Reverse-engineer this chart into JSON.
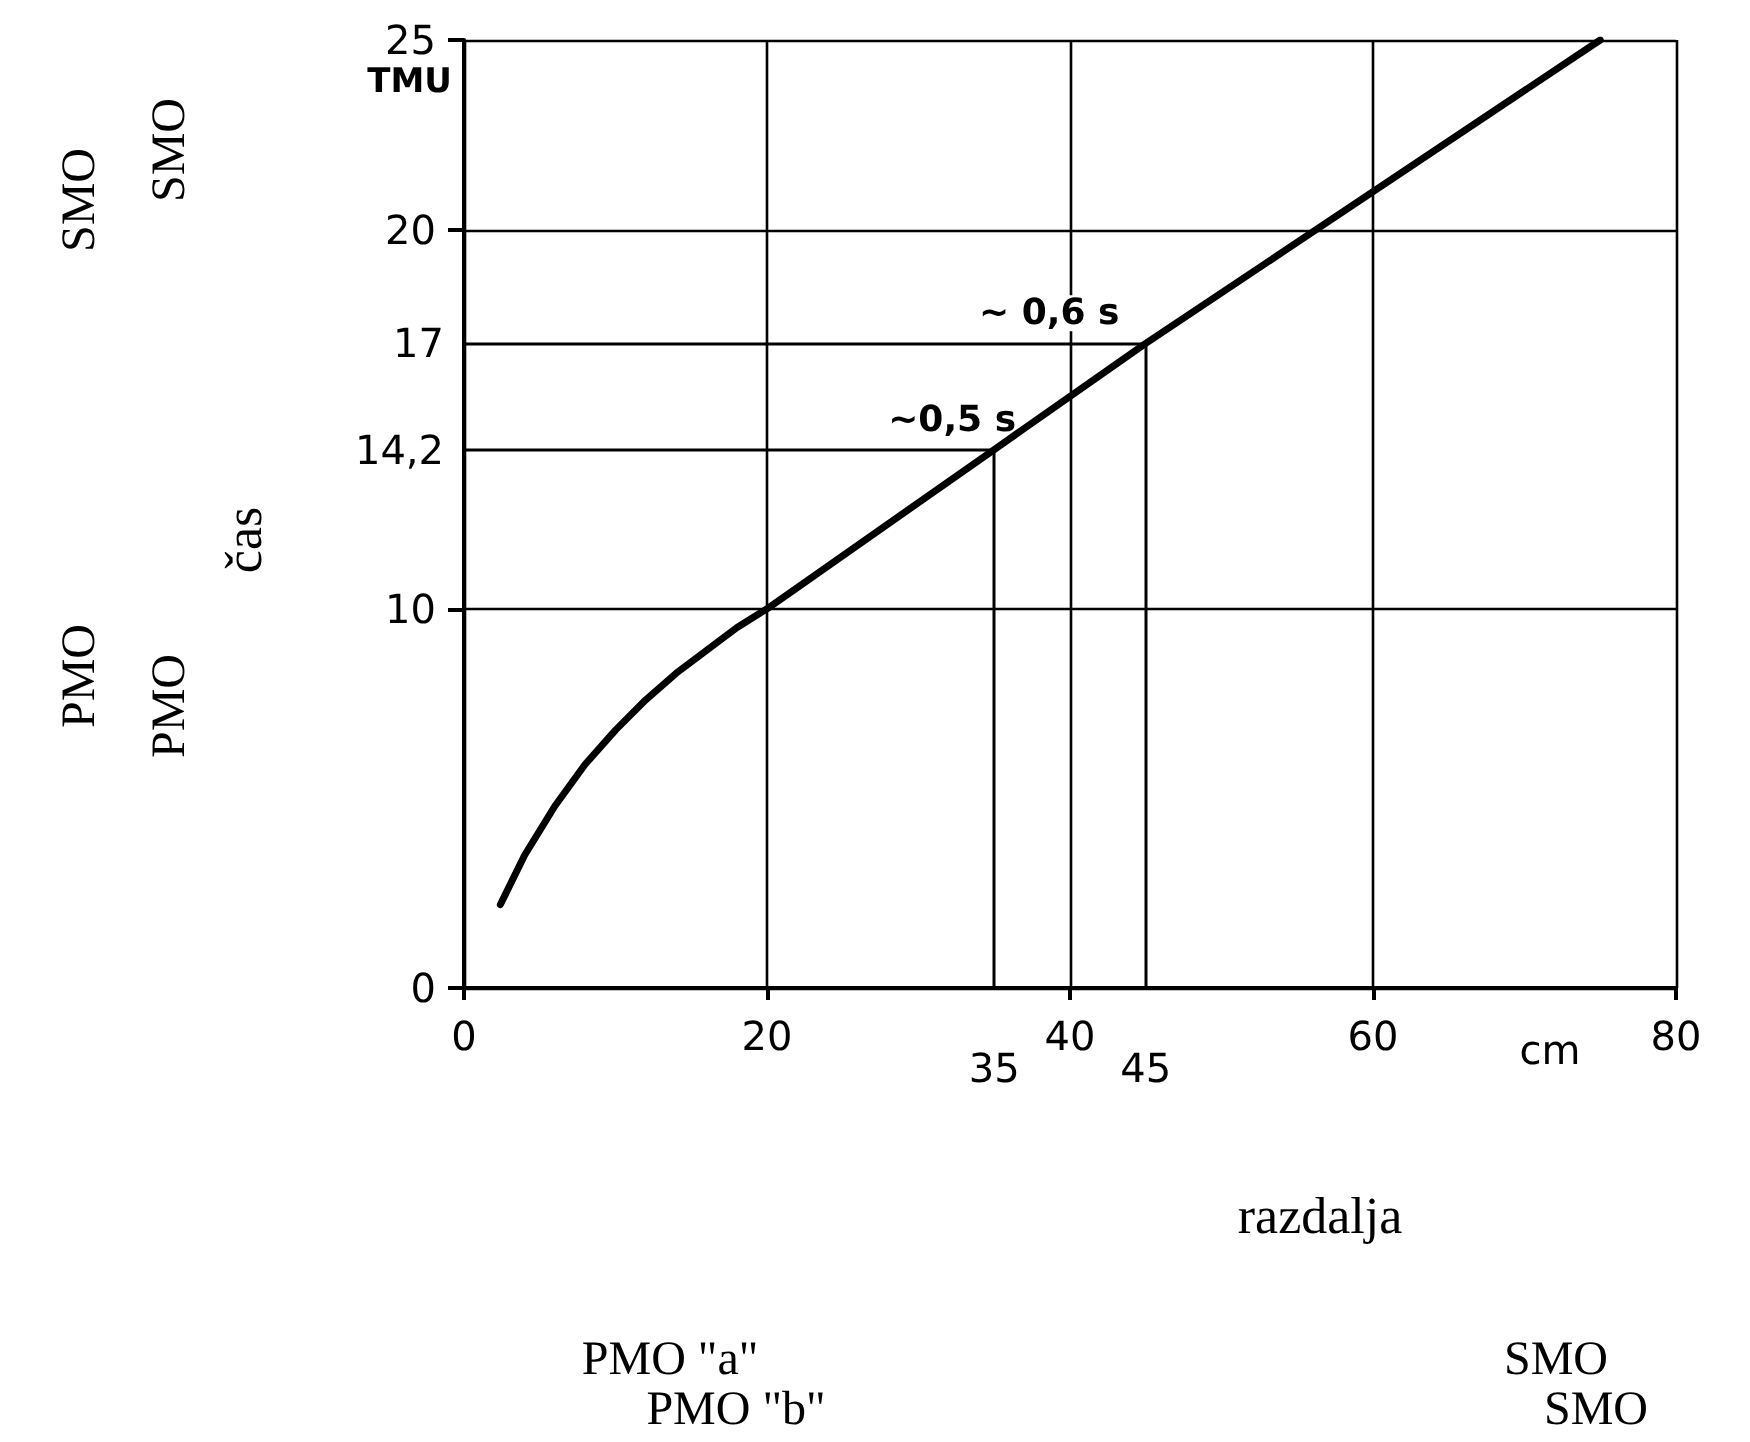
{
  "chart_data": {
    "type": "line",
    "xlabel": "razdalja",
    "ylabel": "čas",
    "x": [
      2.4,
      4,
      6,
      8,
      10,
      12,
      14,
      16,
      18,
      20,
      35,
      45,
      75
    ],
    "series": [
      {
        "color": "#000000",
        "values": [
          2.2,
          3.5,
          4.8,
          5.9,
          6.8,
          7.6,
          8.3,
          8.9,
          9.5,
          10,
          14.2,
          17,
          25
        ]
      }
    ],
    "xlim": [
      0,
      80
    ],
    "ylim": [
      0,
      25
    ],
    "xticks": [
      0,
      20,
      40,
      60,
      80
    ],
    "yticks": [
      0,
      10,
      20,
      25
    ],
    "grid": true,
    "marker": "none",
    "line_style": "solid",
    "ref_lines": [
      {
        "axis": "y",
        "value": 17,
        "label": "17"
      },
      {
        "axis": "y",
        "value": 14.2,
        "label": "14,2"
      },
      {
        "axis": "x",
        "value": 35,
        "label": "35"
      },
      {
        "axis": "x",
        "value": 45,
        "label": "45"
      }
    ],
    "annotations": [
      {
        "text": "~ 0,6 s",
        "x": 34,
        "y": 17
      },
      {
        "text": "~0,5 s",
        "x": 28,
        "y": 14.2
      },
      "TMU",
      "cm",
      "PMO",
      "SMO",
      "PMO",
      "SMO",
      "PMO \"a\"",
      "SMO",
      "PMO \"b\"",
      "SMO"
    ]
  }
}
